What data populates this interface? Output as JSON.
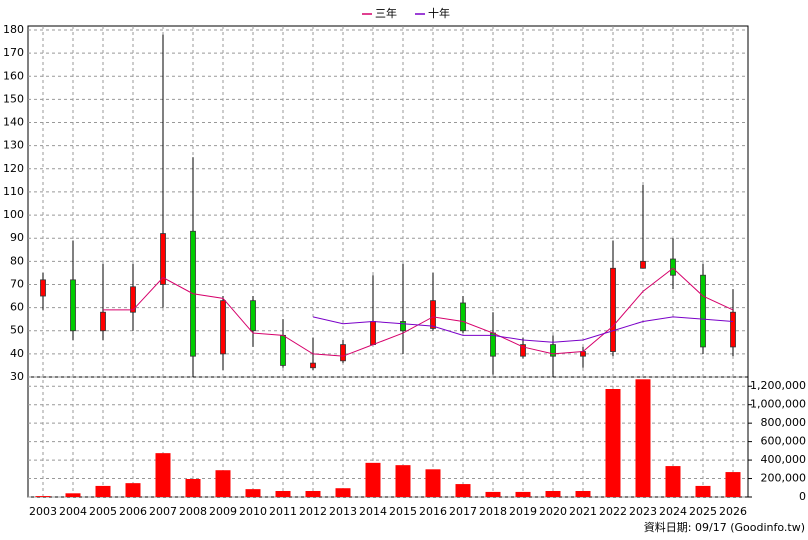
{
  "chart_data": {
    "type": "candlestick",
    "categories": [
      "2003",
      "2004",
      "2005",
      "2006",
      "2007",
      "2008",
      "2009",
      "2010",
      "2011",
      "2012",
      "2013",
      "2014",
      "2015",
      "2016",
      "2017",
      "2018",
      "2019",
      "2020",
      "2021",
      "2022",
      "2023",
      "2024",
      "2025",
      "2026"
    ],
    "open": [
      65,
      72,
      50,
      58,
      70,
      93,
      40,
      63,
      48,
      34,
      37,
      44,
      54,
      51,
      62,
      49,
      39,
      44,
      39,
      41,
      77,
      81,
      74,
      43
    ],
    "high": [
      75,
      89,
      79,
      79,
      178,
      125,
      65,
      65,
      55,
      47,
      46,
      74,
      79,
      75,
      65,
      58,
      47,
      48,
      43,
      89,
      113,
      90,
      79,
      68
    ],
    "low": [
      59,
      46,
      46,
      50,
      60,
      30,
      33,
      43,
      34,
      33,
      36,
      44,
      40,
      50,
      49,
      31,
      38,
      30,
      34,
      39,
      77,
      68,
      40,
      39
    ],
    "close": [
      72,
      50,
      58,
      69,
      92,
      39,
      63,
      50,
      35,
      36,
      44,
      54,
      50,
      63,
      50,
      39,
      44,
      39,
      41,
      77,
      80,
      74,
      43,
      58
    ],
    "up_color": "#ff0000",
    "down_color": "#00cc00",
    "series": [
      {
        "name": "三年",
        "color": "#d6006b",
        "values": [
          null,
          null,
          59,
          59,
          73,
          66,
          64,
          49,
          48,
          40,
          39,
          44,
          49,
          56,
          54,
          49,
          43,
          40,
          41,
          52,
          67,
          77,
          65,
          59
        ]
      },
      {
        "name": "十年",
        "color": "#7a00c8",
        "values": [
          null,
          null,
          null,
          null,
          null,
          null,
          null,
          null,
          null,
          56,
          53,
          54,
          53,
          52,
          48,
          48,
          46,
          45,
          46,
          50,
          54,
          56,
          55,
          54
        ]
      }
    ],
    "ylim": [
      30,
      180
    ],
    "yticks": [
      30,
      40,
      50,
      60,
      70,
      80,
      90,
      100,
      110,
      120,
      130,
      140,
      150,
      160,
      170,
      180
    ],
    "grid": true,
    "volume": {
      "type": "bar",
      "color": "#ff0000",
      "values": [
        10000,
        40000,
        120000,
        150000,
        475000,
        195000,
        290000,
        85000,
        65000,
        65000,
        95000,
        370000,
        345000,
        300000,
        140000,
        55000,
        55000,
        65000,
        65000,
        1170000,
        1275000,
        335000,
        120000,
        270000
      ],
      "ylim": [
        0,
        1300000
      ],
      "yticks": [
        0,
        {
          "value": 200000,
          "label": "200,000"
        },
        {
          "value": 400000,
          "label": "400,000"
        },
        {
          "value": 600000,
          "label": "600,000"
        },
        {
          "value": 800000,
          "label": "800,000"
        },
        {
          "value": 1000000,
          "label": "1,000,000"
        },
        {
          "value": 1200000,
          "label": "1,200,000"
        }
      ]
    },
    "note": "資料日期: 09/17  (Goodinfo.tw)"
  }
}
